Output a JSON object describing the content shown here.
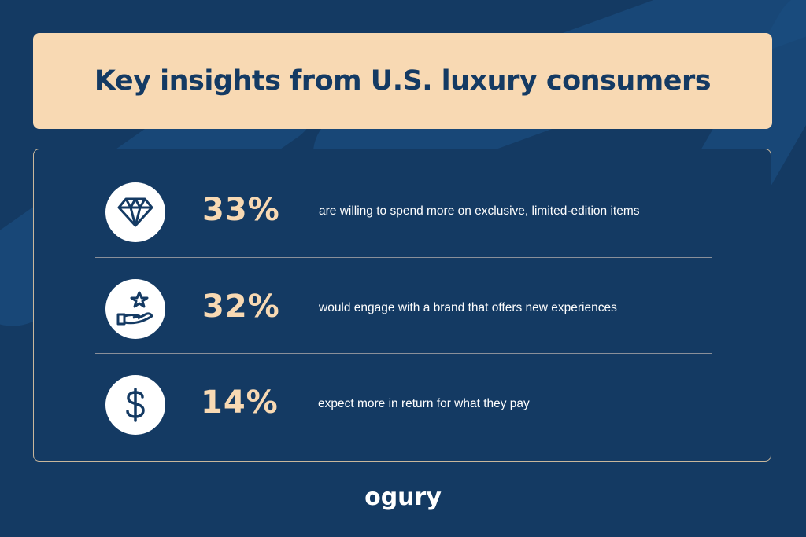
{
  "title": "Key insights from U.S. luxury consumers",
  "colors": {
    "background": "#143a63",
    "accent": "#f8d9b3",
    "text": "#ffffff"
  },
  "stats": [
    {
      "icon": "diamond-icon",
      "value": "33%",
      "text": "are willing to spend more on exclusive, limited-edition items"
    },
    {
      "icon": "hand-star-icon",
      "value": "32%",
      "text": "would engage with a brand that offers new experiences"
    },
    {
      "icon": "dollar-icon",
      "value": "14%",
      "text": "expect more in return for what they pay"
    }
  ],
  "logo": "ogury"
}
